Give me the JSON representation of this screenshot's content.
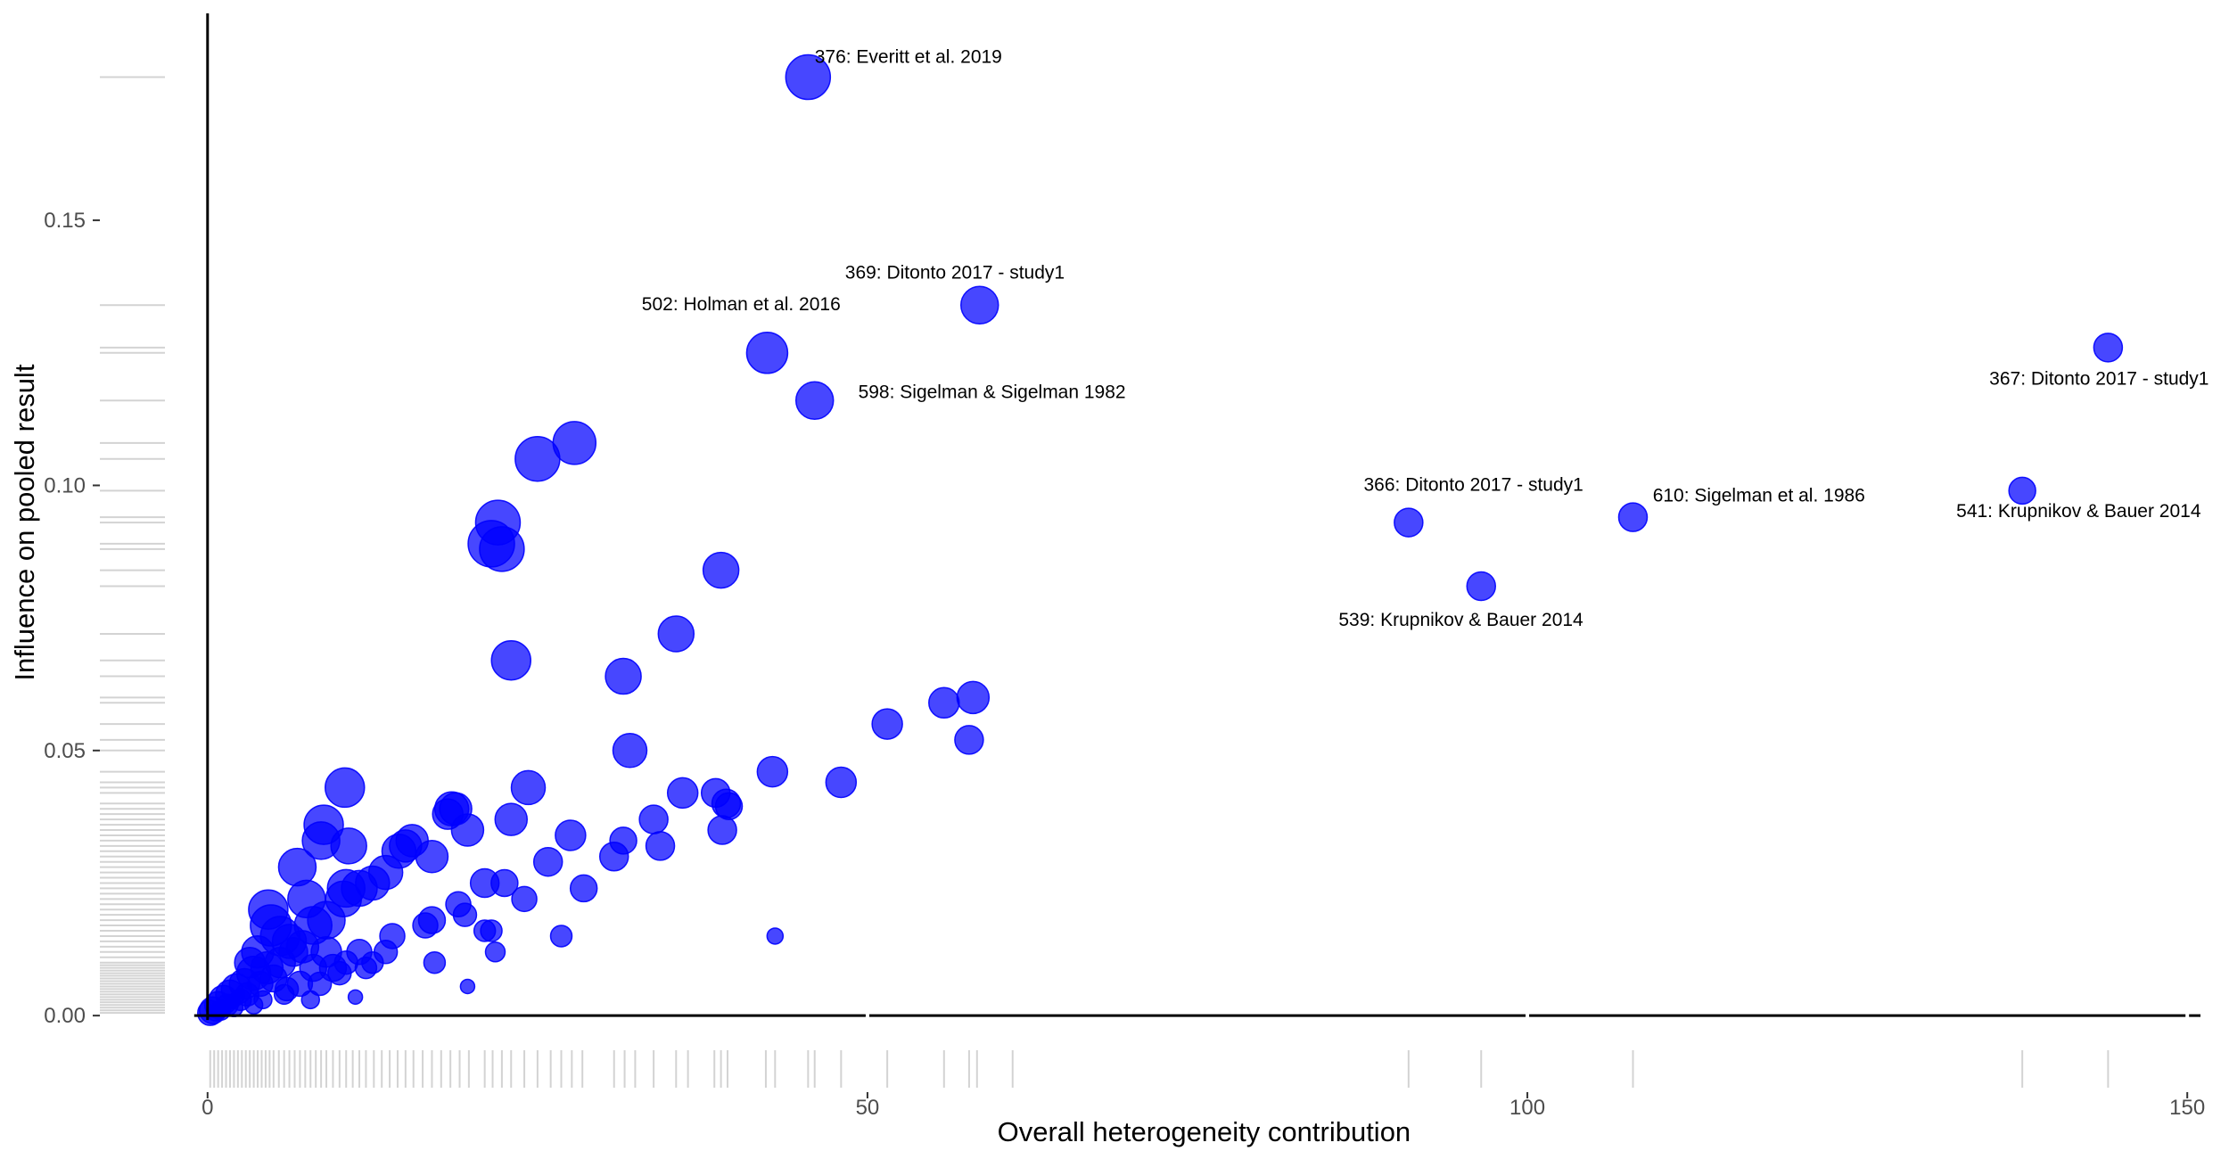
{
  "chart_data": {
    "type": "scatter",
    "title": "",
    "xlabel": "Overall heterogeneity contribution",
    "ylabel": "Influence on pooled result",
    "xlim": [
      -1,
      151
    ],
    "ylim": [
      -0.003,
      0.186
    ],
    "x_ticks": [
      0,
      50,
      100,
      150
    ],
    "x_tick_labels": [
      "0",
      "50",
      "100",
      "150"
    ],
    "y_ticks": [
      0,
      0.05,
      0.1,
      0.15
    ],
    "y_tick_labels": [
      "0.00",
      "0.05",
      "0.10",
      "0.15"
    ],
    "grid": false,
    "legend": "none",
    "point_color": "#0000ff",
    "rug_color": "#d3d3d3",
    "marginal_rug": true,
    "points": [
      {
        "x": 45.5,
        "y": 0.177,
        "r": 25
      },
      {
        "x": 58.5,
        "y": 0.134,
        "r": 21
      },
      {
        "x": 42.4,
        "y": 0.125,
        "r": 23
      },
      {
        "x": 46.0,
        "y": 0.116,
        "r": 21
      },
      {
        "x": 144.0,
        "y": 0.126,
        "r": 16
      },
      {
        "x": 137.5,
        "y": 0.099,
        "r": 15
      },
      {
        "x": 108.0,
        "y": 0.094,
        "r": 16
      },
      {
        "x": 91.0,
        "y": 0.093,
        "r": 16
      },
      {
        "x": 96.5,
        "y": 0.081,
        "r": 16
      },
      {
        "x": 27.8,
        "y": 0.108,
        "r": 24
      },
      {
        "x": 25.0,
        "y": 0.105,
        "r": 25
      },
      {
        "x": 22.0,
        "y": 0.093,
        "r": 25
      },
      {
        "x": 21.5,
        "y": 0.089,
        "r": 26
      },
      {
        "x": 22.3,
        "y": 0.088,
        "r": 25
      },
      {
        "x": 38.9,
        "y": 0.084,
        "r": 20
      },
      {
        "x": 35.5,
        "y": 0.072,
        "r": 20
      },
      {
        "x": 23.0,
        "y": 0.067,
        "r": 22
      },
      {
        "x": 31.5,
        "y": 0.064,
        "r": 20
      },
      {
        "x": 32.0,
        "y": 0.05,
        "r": 19
      },
      {
        "x": 58.0,
        "y": 0.06,
        "r": 18
      },
      {
        "x": 55.8,
        "y": 0.059,
        "r": 17
      },
      {
        "x": 57.7,
        "y": 0.052,
        "r": 16
      },
      {
        "x": 51.5,
        "y": 0.055,
        "r": 17
      },
      {
        "x": 42.8,
        "y": 0.046,
        "r": 17
      },
      {
        "x": 48.0,
        "y": 0.044,
        "r": 17
      },
      {
        "x": 36.0,
        "y": 0.042,
        "r": 17
      },
      {
        "x": 38.5,
        "y": 0.042,
        "r": 16
      },
      {
        "x": 39.3,
        "y": 0.04,
        "r": 16
      },
      {
        "x": 39.5,
        "y": 0.0395,
        "r": 15
      },
      {
        "x": 33.8,
        "y": 0.037,
        "r": 16
      },
      {
        "x": 39.0,
        "y": 0.035,
        "r": 16
      },
      {
        "x": 34.3,
        "y": 0.032,
        "r": 16
      },
      {
        "x": 31.5,
        "y": 0.033,
        "r": 15
      },
      {
        "x": 30.8,
        "y": 0.03,
        "r": 16
      },
      {
        "x": 27.5,
        "y": 0.034,
        "r": 17
      },
      {
        "x": 25.8,
        "y": 0.029,
        "r": 16
      },
      {
        "x": 28.5,
        "y": 0.024,
        "r": 15
      },
      {
        "x": 24.3,
        "y": 0.043,
        "r": 19
      },
      {
        "x": 23.0,
        "y": 0.037,
        "r": 18
      },
      {
        "x": 19.7,
        "y": 0.035,
        "r": 18
      },
      {
        "x": 18.5,
        "y": 0.039,
        "r": 19
      },
      {
        "x": 18.8,
        "y": 0.039,
        "r": 18
      },
      {
        "x": 18.2,
        "y": 0.038,
        "r": 17
      },
      {
        "x": 17.0,
        "y": 0.03,
        "r": 18
      },
      {
        "x": 15.5,
        "y": 0.033,
        "r": 18
      },
      {
        "x": 15.0,
        "y": 0.032,
        "r": 18
      },
      {
        "x": 14.5,
        "y": 0.031,
        "r": 19
      },
      {
        "x": 13.5,
        "y": 0.027,
        "r": 19
      },
      {
        "x": 12.5,
        "y": 0.025,
        "r": 19
      },
      {
        "x": 11.5,
        "y": 0.024,
        "r": 20
      },
      {
        "x": 10.5,
        "y": 0.024,
        "r": 21
      },
      {
        "x": 10.3,
        "y": 0.022,
        "r": 20
      },
      {
        "x": 10.4,
        "y": 0.043,
        "r": 22
      },
      {
        "x": 8.8,
        "y": 0.036,
        "r": 22
      },
      {
        "x": 8.6,
        "y": 0.033,
        "r": 21
      },
      {
        "x": 10.7,
        "y": 0.032,
        "r": 20
      },
      {
        "x": 6.8,
        "y": 0.028,
        "r": 21
      },
      {
        "x": 7.5,
        "y": 0.022,
        "r": 21
      },
      {
        "x": 4.6,
        "y": 0.02,
        "r": 22
      },
      {
        "x": 4.8,
        "y": 0.017,
        "r": 23
      },
      {
        "x": 5.5,
        "y": 0.015,
        "r": 22
      },
      {
        "x": 8.0,
        "y": 0.017,
        "r": 21
      },
      {
        "x": 9.0,
        "y": 0.018,
        "r": 21
      },
      {
        "x": 21.0,
        "y": 0.025,
        "r": 16
      },
      {
        "x": 22.5,
        "y": 0.025,
        "r": 15
      },
      {
        "x": 24.0,
        "y": 0.022,
        "r": 14
      },
      {
        "x": 19.0,
        "y": 0.021,
        "r": 14
      },
      {
        "x": 17.0,
        "y": 0.018,
        "r": 15
      },
      {
        "x": 16.5,
        "y": 0.017,
        "r": 14
      },
      {
        "x": 19.5,
        "y": 0.019,
        "r": 13
      },
      {
        "x": 21.5,
        "y": 0.016,
        "r": 12
      },
      {
        "x": 21.0,
        "y": 0.016,
        "r": 12
      },
      {
        "x": 26.8,
        "y": 0.015,
        "r": 12
      },
      {
        "x": 21.8,
        "y": 0.012,
        "r": 11
      },
      {
        "x": 17.2,
        "y": 0.01,
        "r": 12
      },
      {
        "x": 14.0,
        "y": 0.015,
        "r": 14
      },
      {
        "x": 13.5,
        "y": 0.012,
        "r": 13
      },
      {
        "x": 12.5,
        "y": 0.01,
        "r": 12
      },
      {
        "x": 11.5,
        "y": 0.012,
        "r": 14
      },
      {
        "x": 10.5,
        "y": 0.01,
        "r": 13
      },
      {
        "x": 9.5,
        "y": 0.009,
        "r": 15
      },
      {
        "x": 8.0,
        "y": 0.009,
        "r": 15
      },
      {
        "x": 43.0,
        "y": 0.015,
        "r": 9
      },
      {
        "x": 19.7,
        "y": 0.0055,
        "r": 8
      },
      {
        "x": 11.2,
        "y": 0.0035,
        "r": 8
      },
      {
        "x": 6.5,
        "y": 0.012,
        "r": 16
      },
      {
        "x": 5.5,
        "y": 0.01,
        "r": 17
      },
      {
        "x": 4.5,
        "y": 0.009,
        "r": 18
      },
      {
        "x": 3.5,
        "y": 0.008,
        "r": 19
      },
      {
        "x": 2.8,
        "y": 0.006,
        "r": 17
      },
      {
        "x": 2.2,
        "y": 0.005,
        "r": 17
      },
      {
        "x": 1.7,
        "y": 0.004,
        "r": 16
      },
      {
        "x": 1.2,
        "y": 0.003,
        "r": 16
      },
      {
        "x": 0.8,
        "y": 0.002,
        "r": 15
      },
      {
        "x": 0.4,
        "y": 0.001,
        "r": 15
      },
      {
        "x": 0.2,
        "y": 0.0005,
        "r": 14
      },
      {
        "x": 7.0,
        "y": 0.006,
        "r": 14
      },
      {
        "x": 6.0,
        "y": 0.005,
        "r": 13
      },
      {
        "x": 5.0,
        "y": 0.007,
        "r": 15
      },
      {
        "x": 4.0,
        "y": 0.006,
        "r": 14
      },
      {
        "x": 3.0,
        "y": 0.004,
        "r": 13
      },
      {
        "x": 2.5,
        "y": 0.003,
        "r": 12
      },
      {
        "x": 1.5,
        "y": 0.002,
        "r": 12
      },
      {
        "x": 1.0,
        "y": 0.001,
        "r": 11
      },
      {
        "x": 3.8,
        "y": 0.012,
        "r": 18
      },
      {
        "x": 3.2,
        "y": 0.01,
        "r": 17
      },
      {
        "x": 6.2,
        "y": 0.014,
        "r": 19
      },
      {
        "x": 7.2,
        "y": 0.013,
        "r": 18
      },
      {
        "x": 9.0,
        "y": 0.012,
        "r": 17
      },
      {
        "x": 8.5,
        "y": 0.006,
        "r": 13
      },
      {
        "x": 10.0,
        "y": 0.008,
        "r": 13
      },
      {
        "x": 12.0,
        "y": 0.009,
        "r": 12
      },
      {
        "x": 5.8,
        "y": 0.004,
        "r": 11
      },
      {
        "x": 3.5,
        "y": 0.002,
        "r": 10
      },
      {
        "x": 2.0,
        "y": 0.0015,
        "r": 10
      },
      {
        "x": 0.6,
        "y": 0.0005,
        "r": 9
      },
      {
        "x": 7.8,
        "y": 0.003,
        "r": 10
      },
      {
        "x": 4.2,
        "y": 0.003,
        "r": 10
      }
    ],
    "annotations": [
      {
        "text": "376: Everitt et al. 2019",
        "x": 46.0,
        "y": 0.1797,
        "anchor": "start"
      },
      {
        "text": "369: Ditonto 2017 - study1",
        "x": 48.3,
        "y": 0.139,
        "anchor": "start"
      },
      {
        "text": "502: Holman et al. 2016",
        "x": 32.9,
        "y": 0.133,
        "anchor": "start"
      },
      {
        "text": "598: Sigelman & Sigelman 1982",
        "x": 49.3,
        "y": 0.1165,
        "anchor": "start"
      },
      {
        "text": "367: Ditonto 2017 - study1",
        "x": 135.0,
        "y": 0.119,
        "anchor": "start"
      },
      {
        "text": "366: Ditonto 2017 - study1",
        "x": 87.6,
        "y": 0.099,
        "anchor": "start"
      },
      {
        "text": "610: Sigelman et al. 1986",
        "x": 109.5,
        "y": 0.097,
        "anchor": "start"
      },
      {
        "text": "541: Krupnikov & Bauer 2014",
        "x": 132.5,
        "y": 0.094,
        "anchor": "start"
      },
      {
        "text": "539: Krupnikov & Bauer 2014",
        "x": 85.7,
        "y": 0.0735,
        "anchor": "start"
      }
    ],
    "rug_x": [
      0.2,
      0.5,
      0.8,
      1.1,
      1.4,
      1.7,
      2.0,
      2.3,
      2.6,
      2.9,
      3.2,
      3.5,
      3.8,
      4.1,
      4.4,
      4.7,
      5.0,
      5.4,
      5.8,
      6.2,
      6.6,
      7.0,
      7.4,
      7.8,
      8.2,
      8.6,
      9.0,
      9.5,
      10.0,
      10.5,
      11.0,
      11.5,
      12.0,
      12.6,
      13.2,
      13.8,
      14.4,
      15.0,
      15.6,
      16.3,
      17.0,
      17.7,
      18.4,
      19.1,
      19.8,
      21.0,
      21.6,
      22.3,
      23.0,
      24.0,
      25.0,
      26.0,
      26.8,
      27.6,
      28.4,
      30.8,
      31.6,
      32.4,
      33.8,
      35.5,
      36.4,
      38.4,
      38.9,
      39.4,
      42.3,
      43.0,
      45.5,
      46.0,
      48.0,
      51.5,
      55.8,
      57.7,
      58.3,
      61.0,
      91.0,
      96.5,
      108.0,
      137.5,
      144.0
    ],
    "rug_y": [
      0.0005,
      0.001,
      0.0015,
      0.002,
      0.0025,
      0.003,
      0.0035,
      0.004,
      0.0045,
      0.005,
      0.0055,
      0.006,
      0.0065,
      0.007,
      0.0075,
      0.008,
      0.0085,
      0.009,
      0.0095,
      0.01,
      0.011,
      0.012,
      0.013,
      0.014,
      0.015,
      0.016,
      0.017,
      0.018,
      0.019,
      0.02,
      0.021,
      0.022,
      0.023,
      0.024,
      0.025,
      0.026,
      0.027,
      0.028,
      0.029,
      0.03,
      0.031,
      0.032,
      0.033,
      0.034,
      0.035,
      0.036,
      0.037,
      0.038,
      0.039,
      0.04,
      0.042,
      0.043,
      0.044,
      0.046,
      0.05,
      0.052,
      0.055,
      0.059,
      0.06,
      0.064,
      0.067,
      0.072,
      0.081,
      0.084,
      0.088,
      0.089,
      0.093,
      0.094,
      0.099,
      0.105,
      0.108,
      0.116,
      0.125,
      0.126,
      0.134,
      0.177
    ]
  }
}
